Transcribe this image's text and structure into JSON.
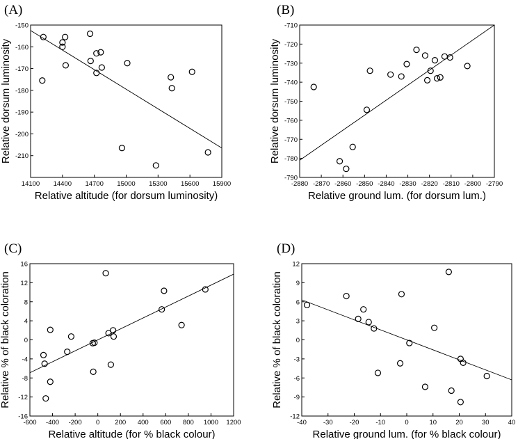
{
  "chart_data": [
    {
      "type": "scatter",
      "panel": "(A)",
      "xlabel": "Relative altitude (for dorsum luminosity)",
      "ylabel": "Relative dorsum luminosity",
      "xlim": [
        14100,
        15900
      ],
      "ylim": [
        -220,
        -150
      ],
      "xticks": [
        14100,
        14400,
        14700,
        15000,
        15300,
        15600,
        15900
      ],
      "yticks": [
        -150,
        -160,
        -170,
        -180,
        -190,
        -200,
        -210
      ],
      "points": [
        [
          14220,
          -155.5
        ],
        [
          14210,
          -175.5
        ],
        [
          14400,
          -158
        ],
        [
          14400,
          -160
        ],
        [
          14425,
          -155.5
        ],
        [
          14430,
          -168.5
        ],
        [
          14660,
          -154
        ],
        [
          14665,
          -166.5
        ],
        [
          14720,
          -163
        ],
        [
          14760,
          -162.5
        ],
        [
          14720,
          -172
        ],
        [
          14770,
          -169.5
        ],
        [
          15010,
          -167.5
        ],
        [
          14960,
          -206.5
        ],
        [
          15280,
          -214.5
        ],
        [
          15420,
          -174
        ],
        [
          15430,
          -179
        ],
        [
          15620,
          -171.5
        ],
        [
          15770,
          -208.5
        ]
      ],
      "fit": [
        [
          14100,
          -152.5
        ],
        [
          15900,
          -206.5
        ]
      ]
    },
    {
      "type": "scatter",
      "panel": "(B)",
      "xlabel": "Relative ground lum. (for dorsum lum.)",
      "ylabel": "Relative dorsum luminosity",
      "xlim": [
        -2880,
        -2790
      ],
      "ylim": [
        -790,
        -710
      ],
      "xticks": [
        -2880,
        -2870,
        -2860,
        -2850,
        -2840,
        -2830,
        -2820,
        -2810,
        -2800,
        -2790
      ],
      "yticks": [
        -710,
        -720,
        -730,
        -740,
        -750,
        -760,
        -770,
        -780,
        -790
      ],
      "points": [
        [
          -2873.5,
          -742.5
        ],
        [
          -2861.5,
          -781.5
        ],
        [
          -2858.5,
          -785.5
        ],
        [
          -2855.5,
          -774
        ],
        [
          -2849,
          -754.5
        ],
        [
          -2847.5,
          -734
        ],
        [
          -2838,
          -736
        ],
        [
          -2833,
          -737
        ],
        [
          -2830.5,
          -730.5
        ],
        [
          -2826,
          -723
        ],
        [
          -2822,
          -726
        ],
        [
          -2819.5,
          -734
        ],
        [
          -2821,
          -739
        ],
        [
          -2817.5,
          -728.5
        ],
        [
          -2816.5,
          -738
        ],
        [
          -2815,
          -737.5
        ],
        [
          -2813,
          -726.5
        ],
        [
          -2810.5,
          -727
        ],
        [
          -2802.5,
          -731.5
        ]
      ],
      "fit": [
        [
          -2880,
          -781
        ],
        [
          -2790,
          -710
        ]
      ]
    },
    {
      "type": "scatter",
      "panel": "(C)",
      "xlabel": "Relative altitude (for % black colour)",
      "ylabel": "Relative % of black coloration",
      "xlim": [
        -600,
        1200
      ],
      "ylim": [
        -16,
        16
      ],
      "xticks": [
        -600,
        -400,
        -200,
        0,
        200,
        400,
        600,
        800,
        1000,
        1200
      ],
      "yticks": [
        16,
        12,
        8,
        4,
        0,
        -4,
        -8,
        -12,
        -16
      ],
      "points": [
        [
          -480,
          -3.2
        ],
        [
          -470,
          -5.0
        ],
        [
          -460,
          -12.3
        ],
        [
          -420,
          2.1
        ],
        [
          -420,
          -8.8
        ],
        [
          -270,
          -2.5
        ],
        [
          -235,
          0.7
        ],
        [
          -45,
          -0.7
        ],
        [
          -30,
          -0.6
        ],
        [
          -40,
          -6.7
        ],
        [
          70,
          14.0
        ],
        [
          95,
          1.4
        ],
        [
          115,
          -5.2
        ],
        [
          135,
          2.0
        ],
        [
          140,
          0.7
        ],
        [
          565,
          6.4
        ],
        [
          585,
          10.3
        ],
        [
          740,
          3.1
        ],
        [
          950,
          10.6
        ]
      ],
      "fit": [
        [
          -600,
          -6.9
        ],
        [
          1200,
          13.8
        ]
      ]
    },
    {
      "type": "scatter",
      "panel": "(D)",
      "xlabel": "Relative ground lum. (for % black colour)",
      "ylabel": "Relative % of black coloration",
      "xlim": [
        -40,
        40
      ],
      "ylim": [
        -12,
        12
      ],
      "xticks": [
        -40,
        -30,
        -20,
        -10,
        0,
        10,
        20,
        30,
        40
      ],
      "yticks": [
        12,
        9,
        6,
        3,
        0,
        -3,
        -6,
        -9,
        -12
      ],
      "points": [
        [
          -38,
          5.5
        ],
        [
          -23,
          6.9
        ],
        [
          -18.5,
          3.3
        ],
        [
          -16.5,
          4.8
        ],
        [
          -14.5,
          2.8
        ],
        [
          -12.5,
          1.8
        ],
        [
          -11,
          -5.2
        ],
        [
          -2.5,
          -3.7
        ],
        [
          -2,
          7.2
        ],
        [
          1,
          -0.5
        ],
        [
          7,
          -7.4
        ],
        [
          10.5,
          1.9
        ],
        [
          16,
          10.7
        ],
        [
          17,
          -8.0
        ],
        [
          20.5,
          -3.0
        ],
        [
          21.5,
          -3.6
        ],
        [
          20.5,
          -9.8
        ],
        [
          30.5,
          -5.7
        ]
      ],
      "fit": [
        [
          -40,
          6.3
        ],
        [
          40,
          -6.3
        ]
      ]
    }
  ]
}
